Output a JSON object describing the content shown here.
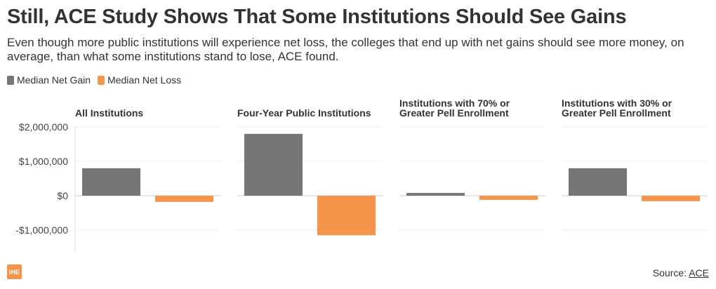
{
  "header": {
    "title": "Still, ACE Study Shows That Some Institutions Should See Gains",
    "subtitle": "Even though more public institutions will experience net loss, the colleges that end up with net gains should see more money, on average, than what some institutions stand to lose, ACE found."
  },
  "legend": {
    "items": [
      {
        "label": "Median Net Gain",
        "color": "#767676"
      },
      {
        "label": "Median Net Loss",
        "color": "#f5954b"
      }
    ]
  },
  "chart_data": {
    "type": "bar",
    "layout": "small-multiples",
    "series_names": [
      "Median Net Gain",
      "Median Net Loss"
    ],
    "colors": [
      "#767676",
      "#f5954b"
    ],
    "ylim": [
      -1500000,
      2000000
    ],
    "yticks": [
      2000000,
      1000000,
      0,
      -1000000
    ],
    "ytick_labels": [
      "$2,000,000",
      "$1,000,000",
      "$0",
      "-$1,000,000"
    ],
    "grid": true,
    "legend_position": "top-left",
    "panels": [
      {
        "title": [
          "All Institutions"
        ],
        "values": [
          800000,
          -180000
        ]
      },
      {
        "title": [
          "Four-Year Public Institutions"
        ],
        "values": [
          1800000,
          -1150000
        ]
      },
      {
        "title": [
          "Institutions with 70% or",
          "Greater Pell Enrollment"
        ],
        "values": [
          80000,
          -120000
        ]
      },
      {
        "title": [
          "Institutions with 30% or",
          "Greater Pell Enrollment"
        ],
        "values": [
          800000,
          -160000
        ]
      }
    ]
  },
  "footer": {
    "logo_text": "IHE",
    "source_label": "Source: ",
    "source_link": "ACE"
  }
}
